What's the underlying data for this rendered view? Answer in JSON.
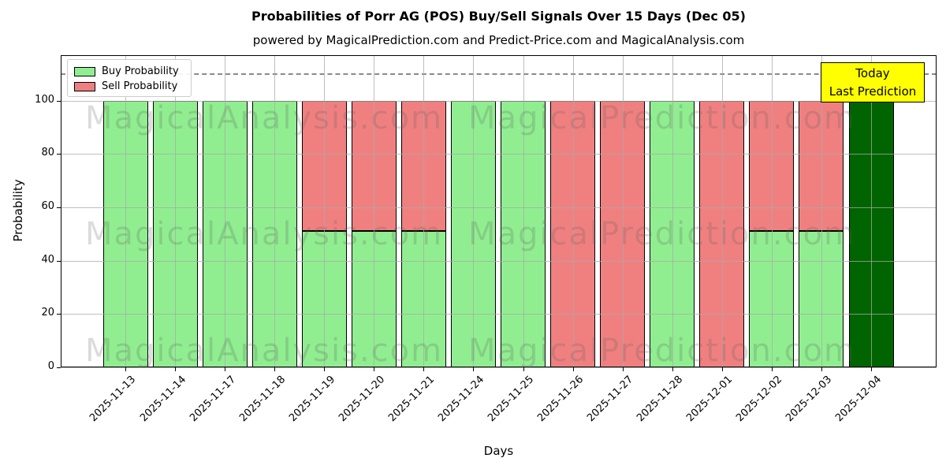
{
  "header": {
    "title": "Probabilities of Porr AG (POS) Buy/Sell Signals Over 15 Days (Dec 05)",
    "subtitle": "powered by MagicalPrediction.com and Predict-Price.com and MagicalAnalysis.com"
  },
  "chart_data": {
    "type": "bar",
    "stacked": true,
    "title": "Probabilities of Porr AG (POS) Buy/Sell Signals Over 15 Days (Dec 05)",
    "xlabel": "Days",
    "ylabel": "Probability",
    "ylim": [
      0,
      117
    ],
    "yticks": [
      0,
      20,
      40,
      60,
      80,
      100
    ],
    "grid": true,
    "dashed_guide_y": 110,
    "legend_position": "upper left",
    "categories": [
      "2025-11-13",
      "2025-11-14",
      "2025-11-17",
      "2025-11-18",
      "2025-11-19",
      "2025-11-20",
      "2025-11-21",
      "2025-11-24",
      "2025-11-25",
      "2025-11-26",
      "2025-11-27",
      "2025-11-28",
      "2025-12-01",
      "2025-12-02",
      "2025-12-03",
      "2025-12-04"
    ],
    "series": [
      {
        "name": "Buy Probability",
        "color": "#90ee90",
        "values": [
          100,
          100,
          100,
          100,
          51,
          51,
          51,
          100,
          100,
          0,
          0,
          100,
          0,
          51,
          51,
          0
        ]
      },
      {
        "name": "Sell Probability",
        "color": "#f08080",
        "values": [
          0,
          0,
          0,
          0,
          49,
          49,
          49,
          0,
          0,
          100,
          100,
          0,
          100,
          49,
          49,
          0
        ]
      },
      {
        "name": "Today Last Prediction",
        "color": "#006400",
        "values": [
          0,
          0,
          0,
          0,
          0,
          0,
          0,
          0,
          0,
          0,
          0,
          0,
          0,
          0,
          0,
          100
        ]
      }
    ]
  },
  "today_box": {
    "line1": "Today",
    "line2": "Last Prediction",
    "bg": "#ffff00"
  },
  "watermarks": {
    "left": "MagicalAnalysis.com",
    "right": "MagicalPrediction.com"
  }
}
